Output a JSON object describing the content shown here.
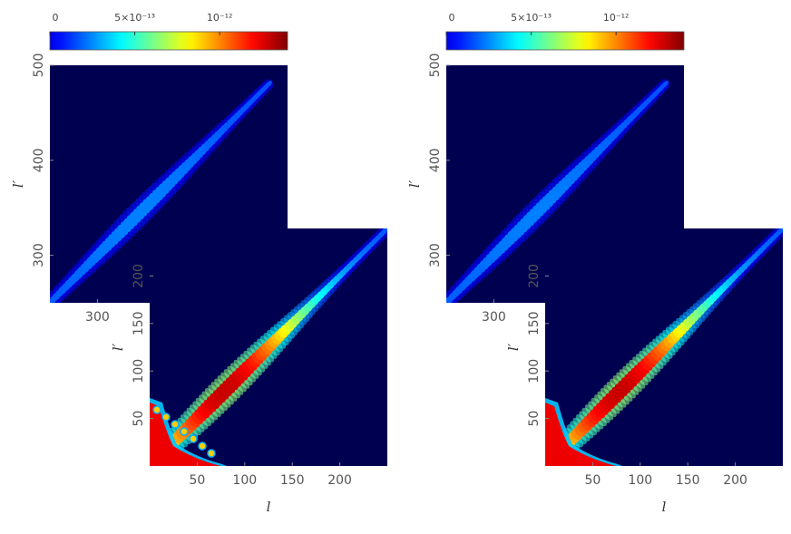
{
  "chart_data": [
    {
      "type": "heatmap",
      "name": "left-figure",
      "colorbar": {
        "colormap": "jet",
        "ticks": [
          {
            "value": 0,
            "label": "0"
          },
          {
            "value": 5e-13,
            "label": "5×10⁻¹³"
          },
          {
            "value": 1e-12,
            "label": "10⁻¹²"
          }
        ],
        "range": [
          0,
          1.4e-12
        ]
      },
      "main_panel": {
        "xlabel": "",
        "ylabel": "l′",
        "xlim": [
          250,
          500
        ],
        "ylim": [
          250,
          500
        ],
        "xticks": [
          {
            "value": 300,
            "label": "300"
          }
        ],
        "yticks": [
          {
            "value": 300,
            "label": "300"
          },
          {
            "value": 400,
            "label": "400"
          },
          {
            "value": 500,
            "label": "500"
          }
        ],
        "feature": {
          "description": "elongated band along diagonal l=l′",
          "center": 345,
          "peak": 3.5e-13,
          "span": [
            250,
            480
          ]
        }
      },
      "inset_panel": {
        "xlabel": "l",
        "ylabel": "l′",
        "xlim": [
          0,
          250
        ],
        "ylim": [
          0,
          250
        ],
        "xticks": [
          {
            "value": 50,
            "label": "50"
          },
          {
            "value": 100,
            "label": "100"
          },
          {
            "value": 150,
            "label": "150"
          },
          {
            "value": 200,
            "label": "200"
          }
        ],
        "yticks": [
          {
            "value": 50,
            "label": "50"
          },
          {
            "value": 100,
            "label": "100"
          },
          {
            "value": 150,
            "label": "150"
          },
          {
            "value": 200,
            "label": "200"
          }
        ],
        "feature": {
          "description": "diagonal band peaking near l≈80 with saturated values and ringing at low l",
          "center": 80,
          "peak": 1.3e-12,
          "span": [
            20,
            250
          ],
          "low_l_saturation": true
        }
      }
    },
    {
      "type": "heatmap",
      "name": "right-figure",
      "colorbar": {
        "colormap": "jet",
        "ticks": [
          {
            "value": 0,
            "label": "0"
          },
          {
            "value": 5e-13,
            "label": "5×10⁻¹³"
          },
          {
            "value": 1e-12,
            "label": "10⁻¹²"
          }
        ],
        "range": [
          0,
          1.4e-12
        ]
      },
      "main_panel": {
        "xlabel": "",
        "ylabel": "l′",
        "xlim": [
          250,
          500
        ],
        "ylim": [
          250,
          500
        ],
        "xticks": [
          {
            "value": 300,
            "label": "300"
          }
        ],
        "yticks": [
          {
            "value": 300,
            "label": "300"
          },
          {
            "value": 400,
            "label": "400"
          },
          {
            "value": 500,
            "label": "500"
          }
        ],
        "feature": {
          "description": "elongated band along diagonal l=l′",
          "center": 345,
          "peak": 3.5e-13,
          "span": [
            250,
            480
          ]
        }
      },
      "inset_panel": {
        "xlabel": "l",
        "ylabel": "l′",
        "xlim": [
          0,
          250
        ],
        "ylim": [
          0,
          250
        ],
        "xticks": [
          {
            "value": 50,
            "label": "50"
          },
          {
            "value": 100,
            "label": "100"
          },
          {
            "value": 150,
            "label": "150"
          },
          {
            "value": 200,
            "label": "200"
          }
        ],
        "yticks": [
          {
            "value": 50,
            "label": "50"
          },
          {
            "value": 100,
            "label": "100"
          },
          {
            "value": 150,
            "label": "150"
          },
          {
            "value": 200,
            "label": "200"
          }
        ],
        "feature": {
          "description": "diagonal band peaking near l≈80, smoother low-l edge",
          "center": 80,
          "peak": 1.3e-12,
          "span": [
            20,
            250
          ],
          "low_l_saturation": true
        }
      }
    }
  ],
  "colors": {
    "background": "#000050",
    "saturated": "#ee0000"
  }
}
